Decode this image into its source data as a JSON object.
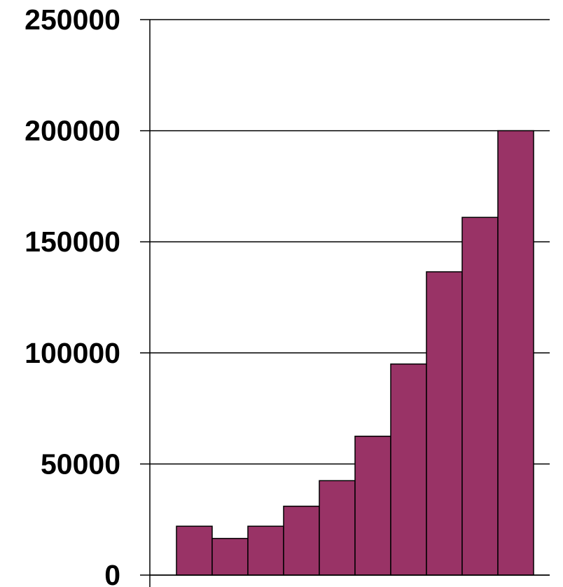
{
  "chart_data": {
    "type": "bar",
    "title": "",
    "xlabel": "",
    "ylabel": "",
    "categories": [
      "",
      "",
      "",
      "",
      "",
      "",
      "",
      "",
      "",
      ""
    ],
    "values": [
      22000,
      16500,
      22000,
      31000,
      42500,
      62500,
      95000,
      136500,
      161000,
      200000
    ],
    "ylim": [
      0,
      250000
    ],
    "yticks": [
      0,
      50000,
      100000,
      150000,
      200000,
      250000
    ],
    "ytick_labels": [
      "0",
      "50000",
      "100000",
      "150000",
      "200000",
      "250000"
    ],
    "grid": true,
    "legend": "none",
    "colors": {
      "bar_fill": "#993366",
      "bar_stroke": "#000000",
      "grid": "#000000",
      "background": "#ffffff"
    }
  }
}
